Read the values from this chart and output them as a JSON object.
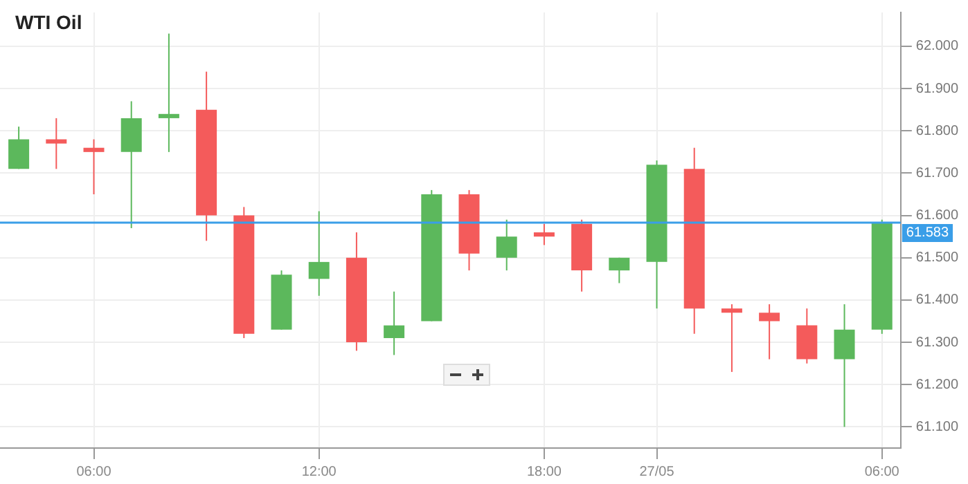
{
  "chart_data": {
    "type": "candlestick",
    "title": "WTI Oil",
    "categories": [
      null,
      null,
      "06:00",
      null,
      null,
      null,
      null,
      null,
      "12:00",
      null,
      null,
      null,
      null,
      null,
      "18:00",
      null,
      null,
      "27/05",
      null,
      null,
      null,
      null,
      null,
      "06:00"
    ],
    "ohlc": [
      [
        61.71,
        61.81,
        61.71,
        61.78
      ],
      [
        61.78,
        61.83,
        61.71,
        61.77
      ],
      [
        61.76,
        61.78,
        61.65,
        61.75
      ],
      [
        61.75,
        61.87,
        61.57,
        61.83
      ],
      [
        61.83,
        62.03,
        61.75,
        61.84
      ],
      [
        61.85,
        61.94,
        61.54,
        61.6
      ],
      [
        61.6,
        61.62,
        61.31,
        61.32
      ],
      [
        61.33,
        61.47,
        61.33,
        61.46
      ],
      [
        61.45,
        61.61,
        61.41,
        61.49
      ],
      [
        61.5,
        61.56,
        61.28,
        61.3
      ],
      [
        61.31,
        61.42,
        61.27,
        61.34
      ],
      [
        61.35,
        61.66,
        61.35,
        61.65
      ],
      [
        61.65,
        61.66,
        61.47,
        61.51
      ],
      [
        61.5,
        61.59,
        61.47,
        61.55
      ],
      [
        61.56,
        61.58,
        61.53,
        61.55
      ],
      [
        61.58,
        61.59,
        61.42,
        61.47
      ],
      [
        61.47,
        61.5,
        61.44,
        61.5
      ],
      [
        61.49,
        61.73,
        61.38,
        61.72
      ],
      [
        61.71,
        61.76,
        61.32,
        61.38
      ],
      [
        61.38,
        61.39,
        61.23,
        61.37
      ],
      [
        61.37,
        61.39,
        61.26,
        61.35
      ],
      [
        61.34,
        61.38,
        61.25,
        61.26
      ],
      [
        61.26,
        61.39,
        61.1,
        61.33
      ],
      [
        61.33,
        61.59,
        61.32,
        61.583
      ]
    ],
    "colors": [
      "#5cb85c",
      "#f45b5b",
      "#f45b5b",
      "#5cb85c",
      "#5cb85c",
      "#f45b5b",
      "#f45b5b",
      "#5cb85c",
      "#5cb85c",
      "#f45b5b",
      "#5cb85c",
      "#5cb85c",
      "#f45b5b",
      "#5cb85c",
      "#f45b5b",
      "#f45b5b",
      "#5cb85c",
      "#5cb85c",
      "#f45b5b",
      "#f45b5b",
      "#f45b5b",
      "#f45b5b",
      "#5cb85c",
      "#5cb85c"
    ],
    "ylim": [
      61.05,
      62.08
    ],
    "yticks": [
      {
        "value": 61.1,
        "label": "61.100"
      },
      {
        "value": 61.2,
        "label": "61.200"
      },
      {
        "value": 61.3,
        "label": "61.300"
      },
      {
        "value": 61.4,
        "label": "61.400"
      },
      {
        "value": 61.5,
        "label": "61.500"
      },
      {
        "value": 61.6,
        "label": "61.600"
      },
      {
        "value": 61.7,
        "label": "61.700"
      },
      {
        "value": 61.8,
        "label": "61.800"
      },
      {
        "value": 61.9,
        "label": "61.900"
      },
      {
        "value": 62,
        "label": "62.000"
      }
    ],
    "ref_lines": [
      {
        "axis": "y",
        "value": 61.583,
        "label": "61.583",
        "color": "#3a9ee8"
      }
    ],
    "grid": true,
    "legend": false
  }
}
